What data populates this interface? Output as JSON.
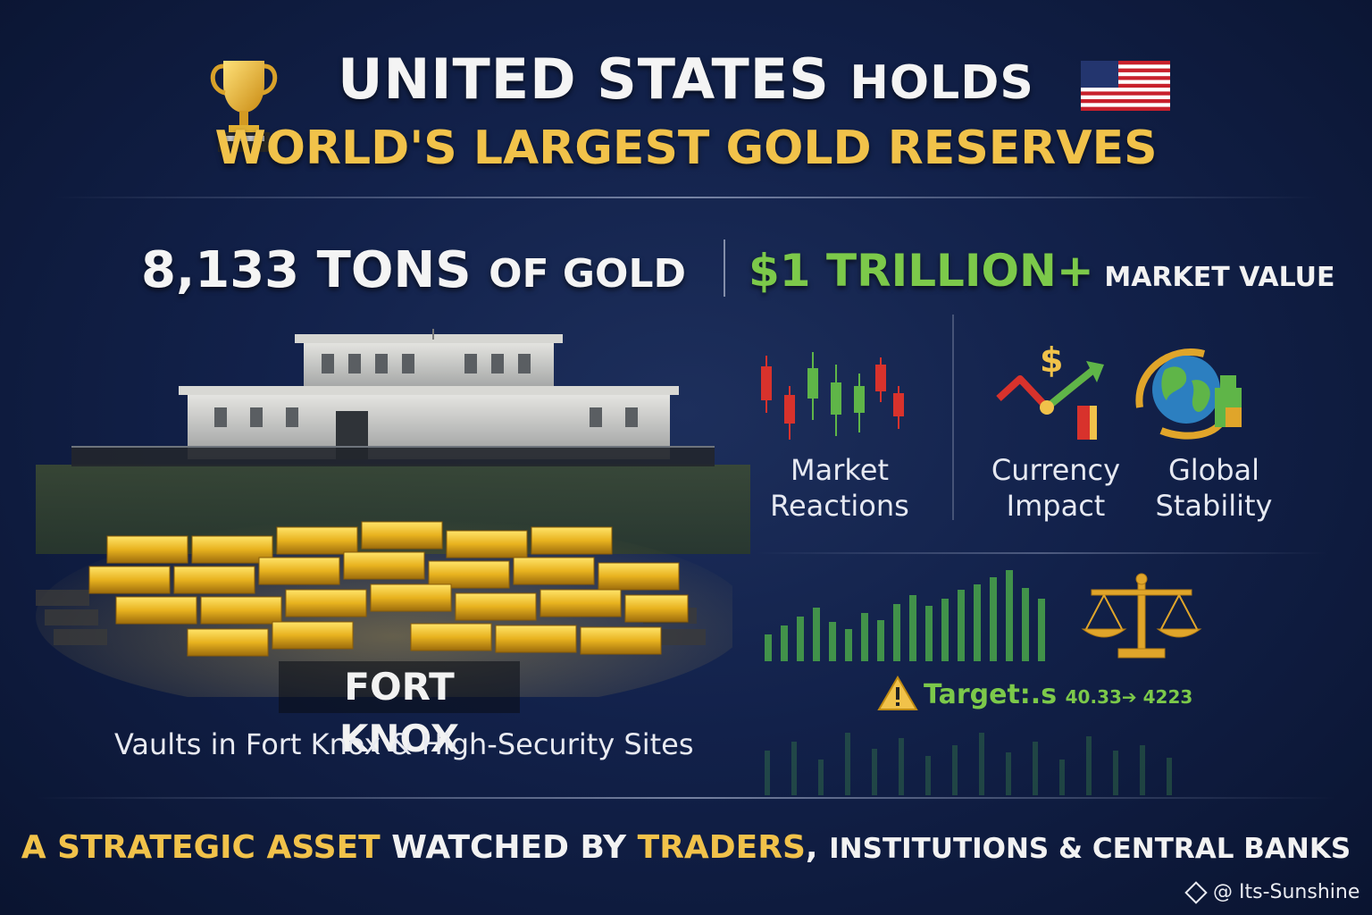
{
  "header": {
    "title_part1": "UNITED STATES",
    "title_part2": "HOLDS",
    "subtitle": "WORLD'S LARGEST GOLD RESERVES"
  },
  "stats": {
    "tons_number": "8,133 TONS",
    "tons_suffix": "OF GOLD",
    "value_big": "$1 TRILLION+",
    "value_suffix": "MARKET VALUE"
  },
  "features": [
    {
      "line1": "Market",
      "line2": "Reactions",
      "icon": "candlestick-chart-icon"
    },
    {
      "line1": "Currency",
      "line2": "Impact",
      "icon": "currency-trend-icon"
    },
    {
      "line1": "Global",
      "line2": "Stability",
      "icon": "globe-icon"
    }
  ],
  "location": {
    "badge": "FORT KNOX",
    "caption": "Vaults in Fort Knox & High-Security Sites"
  },
  "target": {
    "label": "Target:.s",
    "values": "40.33➔ 4223",
    "icon": "warning-icon"
  },
  "tagline": {
    "part1": "A STRATEGIC ASSET",
    "part2": "WATCHED BY",
    "part3": "TRADERS",
    "part4": ",",
    "part5": "INSTITUTIONS & CENTRAL BANKS"
  },
  "watermark": "@ Its-Sunshine",
  "colors": {
    "background": "#12214a",
    "gold": "#f1c24a",
    "green": "#7cc94a",
    "red": "#d8322c"
  }
}
